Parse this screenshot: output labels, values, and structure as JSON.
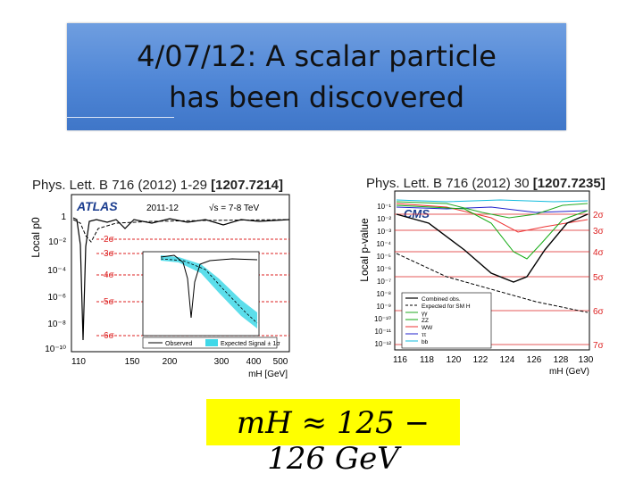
{
  "slide_title": "4/07/12: A scalar particle\nhas been discovered",
  "left_caption": {
    "prefix": "Phys. Lett. B 716 (2012) 1-29 ",
    "ref": "[1207.7214]"
  },
  "right_caption": {
    "prefix": "Phys. Lett. B 716 (2012) 30 ",
    "ref": "[1207.7235]"
  },
  "atlas_plot": {
    "experiment": "ATLAS",
    "period": "2011-12",
    "energy": "√s = 7-8 TeV",
    "ylabel": "Local p0",
    "xlabel": "mH [GeV]",
    "y_ticks": [
      "1",
      "10⁻²",
      "10⁻⁴",
      "10⁻⁶",
      "10⁻⁸",
      "10⁻¹⁰"
    ],
    "x_ticks": [
      "110",
      "150",
      "200",
      "300",
      "400",
      "500"
    ],
    "sigma_labels": [
      "2σ",
      "3σ",
      "4σ",
      "5σ",
      "6σ"
    ],
    "legend": [
      "Observed",
      "Expected Signal ± 1σ"
    ]
  },
  "cms_plot": {
    "experiment": "CMS",
    "ylabel": "Local p-value",
    "xlabel": "mH (GeV)",
    "y_ticks": [
      "10⁻¹",
      "10⁻²",
      "10⁻³",
      "10⁻⁴",
      "10⁻⁵",
      "10⁻⁶",
      "10⁻⁷",
      "10⁻⁸",
      "10⁻⁹",
      "10⁻¹⁰",
      "10⁻¹¹",
      "10⁻¹²"
    ],
    "x_ticks": [
      "116",
      "118",
      "120",
      "122",
      "124",
      "126",
      "128",
      "130"
    ],
    "sigma_labels": [
      "2σ",
      "3σ",
      "4σ",
      "5σ",
      "6σ",
      "7σ"
    ],
    "legend": [
      "Combined obs.",
      "Expected for SM H",
      "γγ",
      "ZZ",
      "WW",
      "ττ",
      "bb"
    ]
  },
  "equation": "mH ≈ 125 − 126 GeV"
}
